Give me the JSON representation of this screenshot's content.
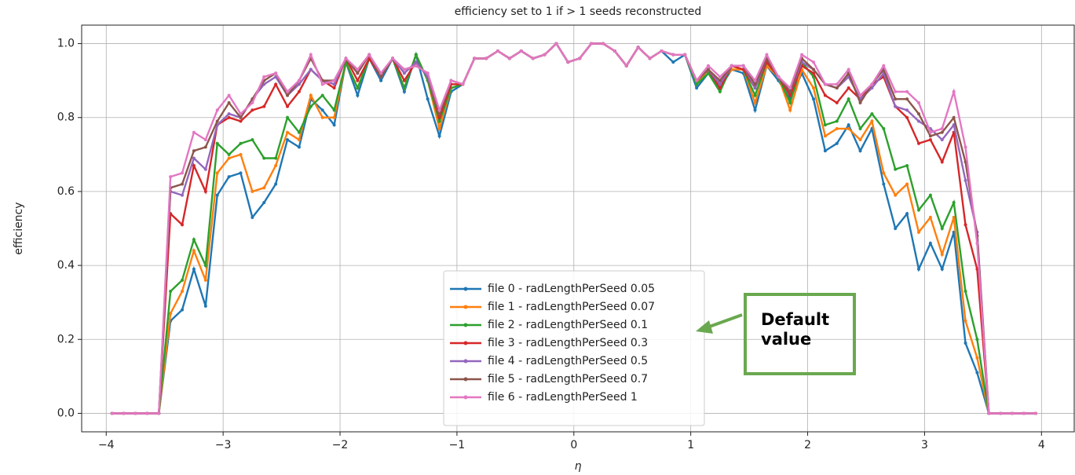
{
  "chart_data": {
    "type": "line",
    "title": "efficiency set to 1 if > 1 seeds reconstructed",
    "x_label": "η",
    "y_label": "efficiency",
    "annotation": "Default value",
    "legend": "lower center",
    "grid": true,
    "xlim": [
      -4.21,
      4.28
    ],
    "ylim": [
      -0.05,
      1.05
    ],
    "xticks": [
      {
        "value": -4,
        "label": "−4"
      },
      {
        "value": -3,
        "label": "−3"
      },
      {
        "value": -2,
        "label": "−2"
      },
      {
        "value": -1,
        "label": "−1"
      },
      0,
      1,
      2,
      3,
      4
    ],
    "yticks": [
      {
        "value": 0,
        "label": "0.0"
      },
      0.2,
      0.4,
      0.6,
      0.8,
      {
        "value": 1,
        "label": "1.0"
      }
    ],
    "x": [
      -3.95,
      -3.85,
      -3.75,
      -3.65,
      -3.55,
      -3.45,
      -3.35,
      -3.25,
      -3.15,
      -3.05,
      -2.95,
      -2.85,
      -2.75,
      -2.65,
      -2.55,
      -2.45,
      -2.35,
      -2.25,
      -2.15,
      -2.05,
      -1.95,
      -1.85,
      -1.75,
      -1.65,
      -1.55,
      -1.45,
      -1.35,
      -1.25,
      -1.15,
      -1.05,
      -0.95,
      -0.85,
      -0.75,
      -0.65,
      -0.55,
      -0.45,
      -0.35,
      -0.25,
      -0.15,
      -0.05,
      0.05,
      0.15,
      0.25,
      0.35,
      0.45,
      0.55,
      0.65,
      0.75,
      0.85,
      0.95,
      1.05,
      1.15,
      1.25,
      1.35,
      1.45,
      1.55,
      1.65,
      1.75,
      1.85,
      1.95,
      2.05,
      2.15,
      2.25,
      2.35,
      2.45,
      2.55,
      2.65,
      2.75,
      2.85,
      2.95,
      3.05,
      3.15,
      3.25,
      3.35,
      3.45,
      3.55,
      3.65,
      3.75,
      3.85,
      3.95
    ],
    "series": [
      {
        "name": "file 0 - radLengthPerSeed 0.05",
        "color": "#1f77b4",
        "values": [
          0,
          0,
          0,
          0,
          0,
          0.25,
          0.28,
          0.39,
          0.29,
          0.59,
          0.64,
          0.65,
          0.53,
          0.57,
          0.62,
          0.74,
          0.72,
          0.85,
          0.82,
          0.78,
          0.95,
          0.86,
          0.96,
          0.9,
          0.96,
          0.87,
          0.97,
          0.85,
          0.75,
          0.87,
          0.89,
          0.96,
          0.96,
          0.98,
          0.96,
          0.98,
          0.96,
          0.97,
          1.0,
          0.95,
          0.96,
          1.0,
          1.0,
          0.98,
          0.94,
          0.99,
          0.96,
          0.98,
          0.95,
          0.97,
          0.88,
          0.92,
          0.88,
          0.93,
          0.92,
          0.82,
          0.94,
          0.9,
          0.85,
          0.92,
          0.85,
          0.71,
          0.73,
          0.78,
          0.71,
          0.77,
          0.62,
          0.5,
          0.54,
          0.39,
          0.46,
          0.39,
          0.49,
          0.19,
          0.11,
          0,
          0,
          0,
          0,
          0
        ]
      },
      {
        "name": "file 1 - radLengthPerSeed 0.07",
        "color": "#ff7f0e",
        "values": [
          0,
          0,
          0,
          0,
          0,
          0.27,
          0.33,
          0.44,
          0.36,
          0.65,
          0.69,
          0.7,
          0.6,
          0.61,
          0.67,
          0.76,
          0.74,
          0.86,
          0.8,
          0.8,
          0.95,
          0.88,
          0.96,
          0.91,
          0.96,
          0.88,
          0.97,
          0.9,
          0.77,
          0.88,
          0.89,
          0.96,
          0.96,
          0.98,
          0.96,
          0.98,
          0.96,
          0.97,
          1.0,
          0.95,
          0.96,
          1.0,
          1.0,
          0.98,
          0.94,
          0.99,
          0.96,
          0.98,
          0.97,
          0.97,
          0.89,
          0.93,
          0.89,
          0.93,
          0.93,
          0.84,
          0.94,
          0.91,
          0.82,
          0.93,
          0.88,
          0.75,
          0.77,
          0.77,
          0.74,
          0.79,
          0.65,
          0.59,
          0.62,
          0.49,
          0.53,
          0.43,
          0.53,
          0.25,
          0.15,
          0,
          0,
          0,
          0,
          0
        ]
      },
      {
        "name": "file 2 - radLengthPerSeed 0.1",
        "color": "#2ca02c",
        "values": [
          0,
          0,
          0,
          0,
          0,
          0.33,
          0.36,
          0.47,
          0.4,
          0.73,
          0.7,
          0.73,
          0.74,
          0.69,
          0.69,
          0.8,
          0.76,
          0.83,
          0.86,
          0.82,
          0.95,
          0.88,
          0.96,
          0.91,
          0.96,
          0.88,
          0.97,
          0.9,
          0.79,
          0.88,
          0.89,
          0.96,
          0.96,
          0.98,
          0.96,
          0.98,
          0.96,
          0.97,
          1.0,
          0.95,
          0.96,
          1.0,
          1.0,
          0.98,
          0.94,
          0.99,
          0.96,
          0.98,
          0.97,
          0.97,
          0.89,
          0.92,
          0.87,
          0.94,
          0.93,
          0.86,
          0.95,
          0.91,
          0.84,
          0.95,
          0.91,
          0.78,
          0.79,
          0.85,
          0.77,
          0.81,
          0.77,
          0.66,
          0.67,
          0.55,
          0.59,
          0.5,
          0.57,
          0.33,
          0.2,
          0,
          0,
          0,
          0,
          0
        ]
      },
      {
        "name": "file 3 - radLengthPerSeed 0.3",
        "color": "#d62728",
        "values": [
          0,
          0,
          0,
          0,
          0,
          0.54,
          0.51,
          0.67,
          0.6,
          0.78,
          0.8,
          0.79,
          0.82,
          0.83,
          0.89,
          0.83,
          0.87,
          0.93,
          0.9,
          0.88,
          0.96,
          0.9,
          0.96,
          0.91,
          0.96,
          0.9,
          0.95,
          0.91,
          0.8,
          0.89,
          0.89,
          0.96,
          0.96,
          0.98,
          0.96,
          0.98,
          0.96,
          0.97,
          1.0,
          0.95,
          0.96,
          1.0,
          1.0,
          0.98,
          0.94,
          0.99,
          0.96,
          0.98,
          0.97,
          0.97,
          0.9,
          0.93,
          0.88,
          0.94,
          0.93,
          0.88,
          0.95,
          0.91,
          0.86,
          0.94,
          0.92,
          0.86,
          0.84,
          0.88,
          0.85,
          0.89,
          0.91,
          0.83,
          0.8,
          0.73,
          0.74,
          0.68,
          0.76,
          0.51,
          0.39,
          0,
          0,
          0,
          0,
          0
        ]
      },
      {
        "name": "file 4 - radLengthPerSeed 0.5",
        "color": "#9467bd",
        "values": [
          0,
          0,
          0,
          0,
          0,
          0.6,
          0.59,
          0.69,
          0.66,
          0.78,
          0.81,
          0.8,
          0.85,
          0.89,
          0.91,
          0.86,
          0.89,
          0.93,
          0.9,
          0.89,
          0.96,
          0.92,
          0.97,
          0.91,
          0.96,
          0.92,
          0.95,
          0.91,
          0.81,
          0.9,
          0.89,
          0.96,
          0.96,
          0.98,
          0.96,
          0.98,
          0.96,
          0.97,
          1.0,
          0.95,
          0.96,
          1.0,
          1.0,
          0.98,
          0.94,
          0.99,
          0.96,
          0.98,
          0.97,
          0.97,
          0.9,
          0.93,
          0.89,
          0.94,
          0.94,
          0.88,
          0.96,
          0.91,
          0.87,
          0.95,
          0.93,
          0.89,
          0.88,
          0.91,
          0.85,
          0.88,
          0.92,
          0.83,
          0.82,
          0.79,
          0.77,
          0.74,
          0.78,
          0.63,
          0.49,
          0,
          0,
          0,
          0,
          0
        ]
      },
      {
        "name": "file 5 - radLengthPerSeed 0.7",
        "color": "#8c564b",
        "values": [
          0,
          0,
          0,
          0,
          0,
          0.61,
          0.62,
          0.71,
          0.72,
          0.79,
          0.84,
          0.8,
          0.85,
          0.9,
          0.92,
          0.86,
          0.9,
          0.96,
          0.9,
          0.9,
          0.96,
          0.92,
          0.97,
          0.91,
          0.96,
          0.93,
          0.94,
          0.92,
          0.81,
          0.9,
          0.89,
          0.96,
          0.96,
          0.98,
          0.96,
          0.98,
          0.96,
          0.97,
          1.0,
          0.95,
          0.96,
          1.0,
          1.0,
          0.98,
          0.94,
          0.99,
          0.96,
          0.98,
          0.97,
          0.97,
          0.9,
          0.93,
          0.9,
          0.94,
          0.94,
          0.89,
          0.96,
          0.91,
          0.87,
          0.96,
          0.93,
          0.89,
          0.88,
          0.92,
          0.84,
          0.89,
          0.93,
          0.85,
          0.85,
          0.81,
          0.75,
          0.76,
          0.8,
          0.68,
          0.48,
          0,
          0,
          0,
          0,
          0
        ]
      },
      {
        "name": "file 6 - radLengthPerSeed 1",
        "color": "#e377c2",
        "values": [
          0,
          0,
          0,
          0,
          0,
          0.64,
          0.65,
          0.76,
          0.74,
          0.82,
          0.86,
          0.81,
          0.84,
          0.91,
          0.92,
          0.87,
          0.9,
          0.97,
          0.89,
          0.9,
          0.96,
          0.93,
          0.97,
          0.92,
          0.96,
          0.93,
          0.94,
          0.92,
          0.82,
          0.9,
          0.89,
          0.96,
          0.96,
          0.98,
          0.96,
          0.98,
          0.96,
          0.97,
          1.0,
          0.95,
          0.96,
          1.0,
          1.0,
          0.98,
          0.94,
          0.99,
          0.96,
          0.98,
          0.97,
          0.97,
          0.9,
          0.94,
          0.91,
          0.94,
          0.94,
          0.9,
          0.97,
          0.91,
          0.88,
          0.97,
          0.95,
          0.89,
          0.89,
          0.93,
          0.86,
          0.89,
          0.94,
          0.87,
          0.87,
          0.84,
          0.76,
          0.77,
          0.87,
          0.72,
          0.46,
          0,
          0,
          0,
          0,
          0
        ]
      }
    ]
  }
}
